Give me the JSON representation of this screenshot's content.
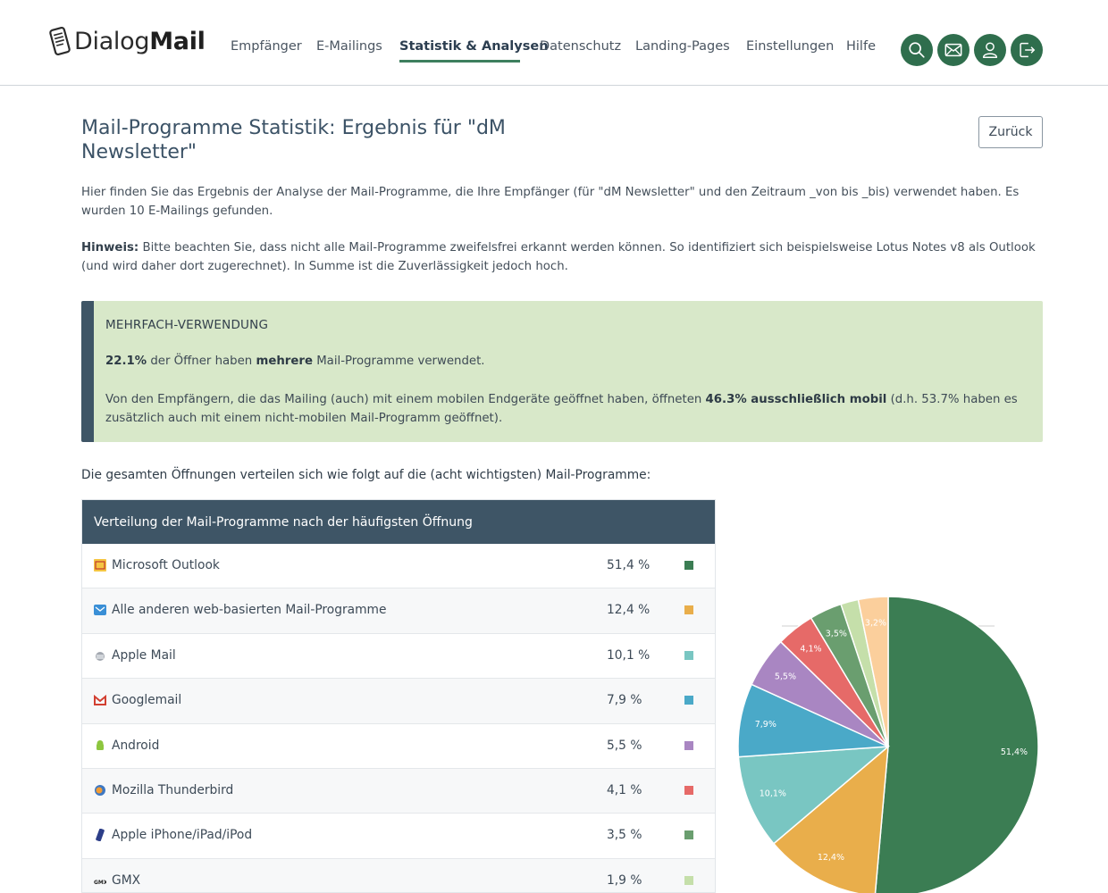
{
  "header": {
    "logo_light": "Dialog",
    "logo_bold": "Mail",
    "nav": [
      {
        "label": "Empfänger"
      },
      {
        "label": "E-Mailings"
      },
      {
        "label": "Statistik & Analysen"
      },
      {
        "label": "Datenschutz"
      },
      {
        "label": "Landing-Pages"
      },
      {
        "label": "Einstellungen"
      },
      {
        "label": "Hilfe"
      }
    ],
    "active_nav": "Statistik & Analysen",
    "icons": [
      "search-icon",
      "mail-icon",
      "user-icon",
      "logout-icon"
    ]
  },
  "page": {
    "title": "Mail-Programme Statistik: Ergebnis für \"dM Newsletter\"",
    "back_label": "Zurück",
    "description": "Hier finden Sie das Ergebnis der Analyse der Mail-Programme, die Ihre Empfänger (für \"dM Newsletter\" und den Zeitraum _von bis _bis) verwendet haben. Es wurden 10 E-Mailings gefunden.",
    "hint_label": "Hinweis:",
    "hint_text": " Bitte beachten Sie, dass nicht alle Mail-Programme zweifelsfrei erkannt werden können. So identifiziert sich beispielsweise Lotus Notes v8 als Outlook (und wird daher dort zugerechnet). In Summe ist die Zuverlässigkeit jedoch hoch."
  },
  "notice": {
    "title": "MEHRFACH-VERWENDUNG",
    "l1_value": "22.1%",
    "l1_mid": " der Öffner haben ",
    "l1_bold": "mehrere",
    "l1_end": " Mail-Programme verwendet.",
    "l2_start": "Von den Empfängern, die das Mailing (auch) mit einem mobilen Endgeräte geöffnet haben, öffneten ",
    "l2_bold": "46.3% ausschließlich mobil",
    "l2_end": " (d.h. 53.7% haben es zusätzlich auch mit einem nicht-mobilen Mail-Programm geöffnet)."
  },
  "intro": "Die gesamten Öffnungen verteilen sich wie folgt auf die (acht wichtigsten) Mail-Programme:",
  "table": {
    "title": "Verteilung der Mail-Programme nach der häufigsten Öffnung",
    "rows": [
      {
        "name": "Microsoft Outlook",
        "pct": "51,4 %",
        "color": "#3b7d53",
        "icon": "outlook-icon"
      },
      {
        "name": "Alle anderen web-basierten Mail-Programme",
        "pct": "12,4 %",
        "color": "#e9ae4b",
        "icon": "webmail-icon"
      },
      {
        "name": "Apple Mail",
        "pct": "10,1 %",
        "color": "#79c6c2",
        "icon": "apple-mail-icon"
      },
      {
        "name": "Googlemail",
        "pct": "7,9 %",
        "color": "#4aa9c8",
        "icon": "gmail-icon"
      },
      {
        "name": "Android",
        "pct": "5,5 %",
        "color": "#a986c2",
        "icon": "android-icon"
      },
      {
        "name": "Mozilla Thunderbird",
        "pct": "4,1 %",
        "color": "#e66a68",
        "icon": "thunderbird-icon"
      },
      {
        "name": "Apple iPhone/iPad/iPod",
        "pct": "3,5 %",
        "color": "#6a9e6f",
        "icon": "iphone-icon"
      },
      {
        "name": "GMX",
        "pct": "1,9 %",
        "color": "#c5dfaa",
        "icon": "gmx-icon"
      }
    ]
  },
  "chart_data": {
    "type": "pie",
    "categories": [
      "Microsoft Outlook",
      "Alle anderen web-basierten Mail-Programme",
      "Apple Mail",
      "Googlemail",
      "Android",
      "Mozilla Thunderbird",
      "Apple iPhone/iPad/iPod",
      "GMX",
      ""
    ],
    "values": [
      51.4,
      12.4,
      10.1,
      7.9,
      5.5,
      4.1,
      3.5,
      1.9,
      3.2
    ],
    "labels": [
      "51,4%",
      "12,4%",
      "10,1%",
      "7,9%",
      "5,5%",
      "4,1%",
      "3,5%",
      "",
      "3,2%"
    ],
    "colors": [
      "#3b7d53",
      "#e9ae4b",
      "#79c6c2",
      "#4aa9c8",
      "#a986c2",
      "#e66a68",
      "#6a9e6f",
      "#c5dfaa",
      "#fbcf9c"
    ]
  }
}
